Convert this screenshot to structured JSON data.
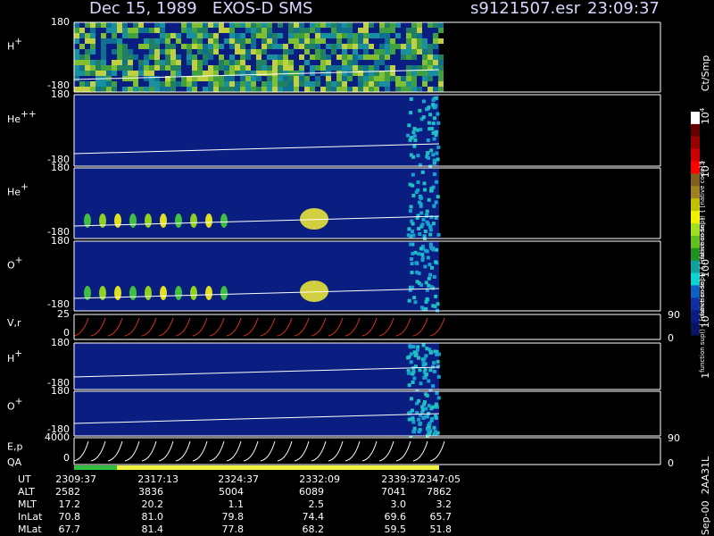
{
  "header": {
    "title": "Dec 15, 1989   EXOS-D SMS",
    "file": "s9121507.esr",
    "time": "23:09:37"
  },
  "panels": [
    {
      "label": {
        "base": "H",
        "sup": "+"
      },
      "ticks": [
        180,
        -180
      ]
    },
    {
      "label": {
        "base": "He",
        "sup": "++"
      },
      "ticks": [
        180,
        -180
      ]
    },
    {
      "label": {
        "base": "He",
        "sup": "+"
      },
      "ticks": [
        180,
        -180
      ]
    },
    {
      "label": {
        "base": "O",
        "sup": "+"
      },
      "ticks": [
        180,
        -180
      ]
    },
    {
      "label": {
        "base": "V,r"
      },
      "ticks": [
        25,
        0
      ],
      "right_ticks": [
        90,
        0
      ]
    },
    {
      "label": {
        "base": "H",
        "sup": "+"
      },
      "ticks": [
        180,
        -180
      ]
    },
    {
      "label": {
        "base": "O",
        "sup": "+"
      },
      "ticks": [
        180,
        -180
      ]
    },
    {
      "label": {
        "base": "E,p"
      },
      "label2": "QA",
      "ticks": [
        4000,
        0
      ],
      "right_ticks": [
        90,
        0
      ]
    }
  ],
  "table": {
    "rows": [
      [
        "UT",
        "2309:37",
        "2317:13",
        "2324:37",
        "2332:09",
        "2339:37",
        "2347:05"
      ],
      [
        "ALT",
        "2582",
        "3836",
        "5004",
        "6089",
        "7041",
        "7862"
      ],
      [
        "MLT",
        "17.2",
        "20.2",
        "1.1",
        "2.5",
        "3.0",
        "3.2"
      ],
      [
        "InLat",
        "70.8",
        "81.0",
        "79.8",
        "74.4",
        "69.6",
        "65.7"
      ],
      [
        "MLat",
        "67.7",
        "81.4",
        "77.8",
        "68.2",
        "59.5",
        "51.8"
      ]
    ]
  },
  "colorbar": {
    "unit": "Ct/Smp",
    "labels": [
      {
        "base": "10",
        "sup": "4"
      },
      {
        "base": "10",
        "sup": "3"
      },
      "100",
      "10",
      "1"
    ]
  },
  "footer": "Sep-00  2AA31L"
}
